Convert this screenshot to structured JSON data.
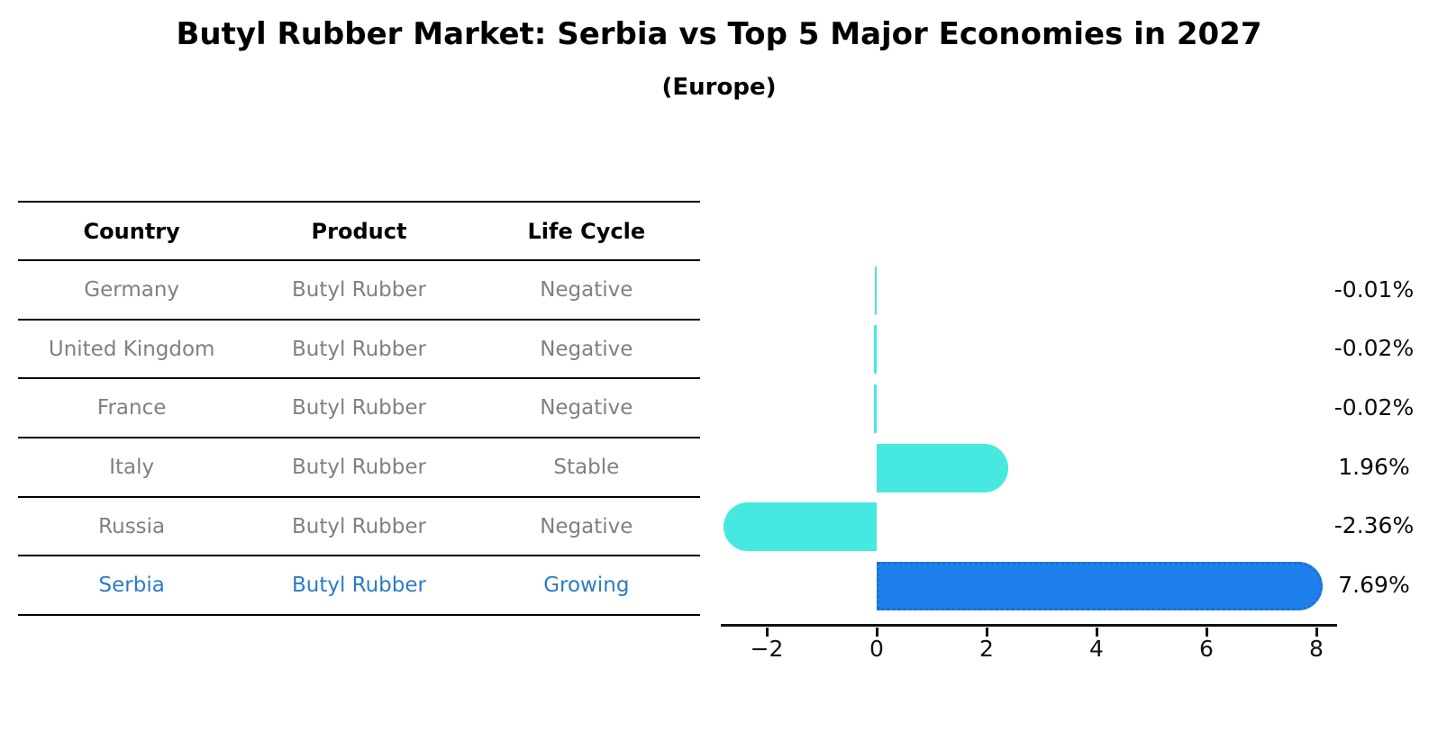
{
  "header": {
    "title": "Butyl Rubber Market: Serbia vs Top 5 Major Economies in 2027",
    "subtitle": "(Europe)"
  },
  "table": {
    "columns": [
      "Country",
      "Product",
      "Life Cycle"
    ],
    "rows": [
      {
        "country": "Germany",
        "product": "Butyl Rubber",
        "life_cycle": "Negative"
      },
      {
        "country": "United Kingdom",
        "product": "Butyl Rubber",
        "life_cycle": "Negative"
      },
      {
        "country": "France",
        "product": "Butyl Rubber",
        "life_cycle": "Negative"
      },
      {
        "country": "Italy",
        "product": "Butyl Rubber",
        "life_cycle": "Stable"
      },
      {
        "country": "Russia",
        "product": "Butyl Rubber",
        "life_cycle": "Negative"
      },
      {
        "country": "Serbia",
        "product": "Butyl Rubber",
        "life_cycle": "Growing"
      }
    ]
  },
  "chart_data": {
    "type": "bar",
    "orientation": "horizontal",
    "title": "Butyl Rubber Market: Serbia vs Top 5 Major Economies in 2027",
    "subtitle": "(Europe)",
    "categories": [
      "Germany",
      "United Kingdom",
      "France",
      "Italy",
      "Russia",
      "Serbia"
    ],
    "values": [
      -0.01,
      -0.02,
      -0.02,
      1.96,
      -2.36,
      7.69
    ],
    "value_labels": [
      "-0.01%",
      "-0.02%",
      "-0.02%",
      "1.96%",
      "-2.36%",
      "7.69%"
    ],
    "unit": "% growth",
    "xlabel": "",
    "ylabel": "",
    "x_ticks": [
      -2,
      0,
      2,
      4,
      6,
      8
    ],
    "x_tick_labels": [
      "−2",
      "0",
      "2",
      "4",
      "6",
      "8"
    ],
    "xlim": [
      -2.85,
      8.4
    ],
    "grid": false,
    "legend": "none",
    "highlight_index": 5,
    "colors": {
      "default_bar": "#46e8e0",
      "highlight_bar": "#1f80ec",
      "highlight_edge": "#1a6fd6",
      "highlight_text": "#2b7bca",
      "cell_text": "#808080",
      "axis": "#111111"
    }
  }
}
